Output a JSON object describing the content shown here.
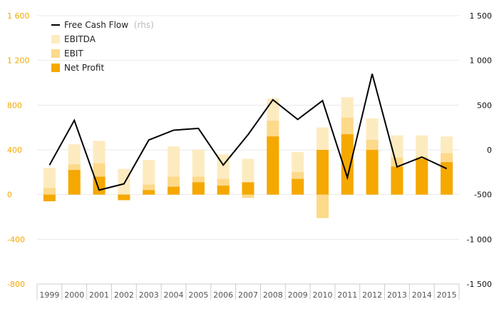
{
  "chart_data": {
    "type": "bar",
    "categories": [
      "1999",
      "2000",
      "2001",
      "2002",
      "2003",
      "2004",
      "2005",
      "2006",
      "2007",
      "2008",
      "2009",
      "2010",
      "2011",
      "2012",
      "2013",
      "2014",
      "2015"
    ],
    "y_left": {
      "min": -800,
      "max": 1600,
      "ticks": [
        -800,
        -400,
        0,
        400,
        800,
        1200,
        1600
      ],
      "tick_labels": [
        "-800",
        "-400",
        "0",
        "400",
        "800",
        "1 200",
        "1 600"
      ]
    },
    "y_right": {
      "min": -1500,
      "max": 1500,
      "ticks": [
        -1500,
        -1000,
        -500,
        0,
        500,
        1000,
        1500
      ],
      "tick_labels": [
        "-1 500",
        "-1 000",
        "-500",
        "0",
        "500",
        "1 000",
        "1 500"
      ]
    },
    "legend": {
      "position": "top-left",
      "line_label": "Free Cash Flow",
      "line_hint": "(rhs)"
    },
    "series": [
      {
        "name": "EBITDA",
        "axis": "left",
        "color": "#fdebc0",
        "values": [
          240,
          450,
          480,
          230,
          310,
          430,
          400,
          360,
          320,
          860,
          380,
          600,
          870,
          680,
          530,
          530,
          520
        ]
      },
      {
        "name": "EBIT",
        "axis": "left",
        "color": "#fdd98a",
        "values": [
          60,
          270,
          280,
          -30,
          90,
          160,
          160,
          140,
          -30,
          660,
          200,
          -210,
          690,
          490,
          330,
          340,
          370
        ]
      },
      {
        "name": "Net Profit",
        "axis": "left",
        "color": "#f5a800",
        "values": [
          -60,
          220,
          160,
          -50,
          40,
          70,
          110,
          80,
          110,
          520,
          140,
          400,
          540,
          400,
          250,
          320,
          290
        ]
      },
      {
        "name": "Free Cash Flow",
        "axis": "right",
        "type": "line",
        "color": "#000000",
        "values": [
          -170,
          330,
          -450,
          -380,
          110,
          220,
          240,
          -170,
          170,
          560,
          340,
          550,
          -310,
          850,
          -190,
          -80,
          -210
        ]
      }
    ]
  }
}
